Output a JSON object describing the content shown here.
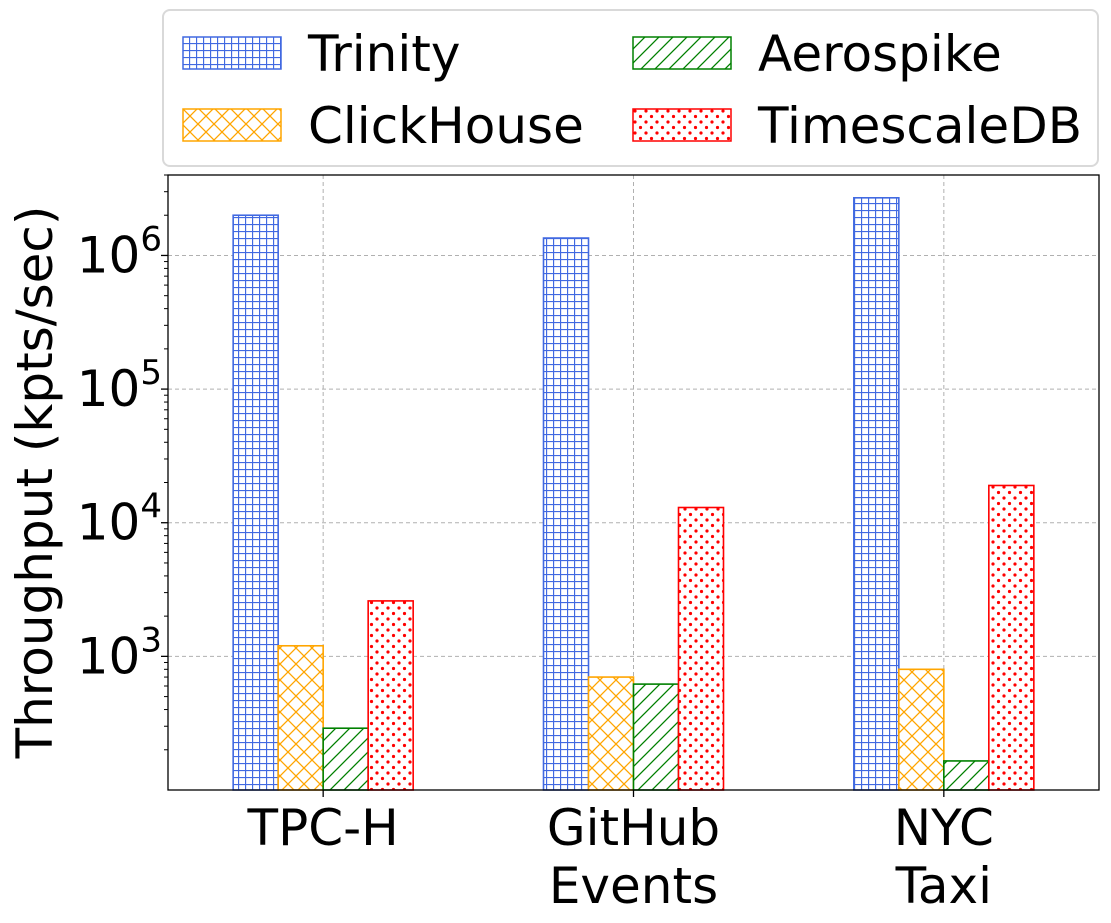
{
  "chart_data": {
    "type": "bar",
    "categories": [
      "TPC-H",
      "GitHub\nEvents",
      "NYC\nTaxi"
    ],
    "ylabel": "Throughput (kpts/sec)",
    "yscale": "log",
    "ylim": [
      100,
      4000000
    ],
    "yticks": [
      1000,
      10000,
      100000,
      1000000
    ],
    "ytick_labels": [
      {
        "base": "10",
        "exp": "3"
      },
      {
        "base": "10",
        "exp": "4"
      },
      {
        "base": "10",
        "exp": "5"
      },
      {
        "base": "10",
        "exp": "6"
      }
    ],
    "grid": true,
    "legend_placement": "top, outside plot, 2 columns",
    "series": [
      {
        "name": "Trinity",
        "values": [
          2000000,
          1350000,
          2700000
        ],
        "color": "#4169e1",
        "hatch": "grid"
      },
      {
        "name": "ClickHouse",
        "values": [
          1200,
          700,
          800
        ],
        "color": "#ffa500",
        "hatch": "crosshatch"
      },
      {
        "name": "Aerospike",
        "values": [
          290,
          620,
          165
        ],
        "color": "#008000",
        "hatch": "diagonal"
      },
      {
        "name": "TimescaleDB",
        "values": [
          2600,
          13000,
          19000
        ],
        "color": "#ff0000",
        "hatch": "dots"
      }
    ]
  }
}
